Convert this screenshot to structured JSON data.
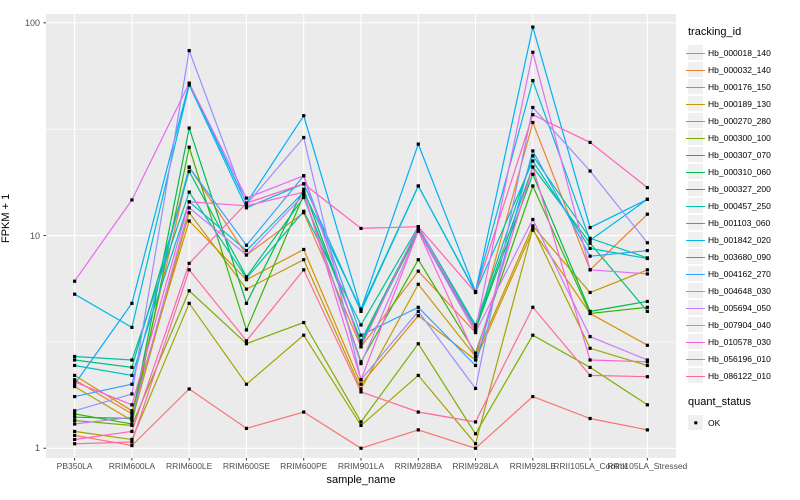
{
  "chart_data": {
    "type": "line",
    "title": "",
    "xlabel": "sample_name",
    "ylabel": "FPKM + 1",
    "y_scale": "log10",
    "y_ticks": [
      1,
      10,
      100
    ],
    "ylim": [
      0.9,
      110
    ],
    "grid": "on",
    "legend_position": "right",
    "categories": [
      "PB350LA",
      "RRIM600LA",
      "RRIM600LE",
      "RRIM600SE",
      "RRIM600PE",
      "RRIM901LA",
      "RRIM928BA",
      "RRIM928LA",
      "RRIM928LE",
      "RRII105LA_Control",
      "RRII105LA_Stressed"
    ],
    "series": [
      {
        "name": "Hb_000018_140",
        "color": "#F8766D",
        "values": [
          1.15,
          1.03,
          1.9,
          1.24,
          1.48,
          1.0,
          1.22,
          1.0,
          1.75,
          1.38,
          1.22
        ]
      },
      {
        "name": "Hb_000032_140",
        "color": "#EA8331",
        "values": [
          2.1,
          1.45,
          21,
          8.1,
          12.8,
          3.0,
          6.8,
          3.5,
          34,
          6.9,
          12.6
        ]
      },
      {
        "name": "Hb_000176_150",
        "color": "#D89000",
        "values": [
          2.2,
          1.5,
          11.7,
          6.2,
          8.6,
          2.0,
          4.2,
          2.6,
          10.6,
          4.3,
          3.05
        ]
      },
      {
        "name": "Hb_000189_130",
        "color": "#C09B00",
        "values": [
          1.95,
          1.35,
          12.8,
          5.6,
          7.7,
          1.9,
          5.9,
          2.7,
          11.1,
          5.4,
          6.9
        ]
      },
      {
        "name": "Hb_000270_280",
        "color": "#A3A500",
        "values": [
          1.2,
          1.1,
          4.8,
          2.0,
          3.4,
          1.28,
          2.2,
          1.05,
          10.8,
          2.95,
          2.45
        ]
      },
      {
        "name": "Hb_000300_100",
        "color": "#7CAE00",
        "values": [
          1.35,
          1.28,
          5.5,
          3.1,
          3.9,
          1.33,
          3.1,
          1.17,
          3.4,
          2.4,
          1.6
        ]
      },
      {
        "name": "Hb_000307_070",
        "color": "#39B600",
        "values": [
          1.45,
          1.3,
          26,
          3.6,
          15.5,
          2.55,
          7.7,
          2.8,
          17.1,
          4.3,
          4.6
        ]
      },
      {
        "name": "Hb_000310_060",
        "color": "#00BB4E",
        "values": [
          1.4,
          1.38,
          32,
          4.8,
          16.5,
          3.1,
          10.5,
          3.6,
          19.4,
          4.4,
          4.9
        ]
      },
      {
        "name": "Hb_000327_200",
        "color": "#00BF7D",
        "values": [
          2.6,
          2.4,
          20,
          6.4,
          15.1,
          3.2,
          10.8,
          3.7,
          21,
          9.2,
          4.4
        ]
      },
      {
        "name": "Hb_000457_250",
        "color": "#00C1A3",
        "values": [
          2.7,
          2.6,
          16,
          6.3,
          13.0,
          3.8,
          11.0,
          3.8,
          23.7,
          9.7,
          7.85
        ]
      },
      {
        "name": "Hb_001103_060",
        "color": "#00BFC4",
        "values": [
          2.45,
          2.2,
          14.4,
          8.5,
          16.0,
          4.5,
          17.1,
          5.4,
          22.4,
          8.7,
          7.8
        ]
      },
      {
        "name": "Hb_001842_020",
        "color": "#00BAE0",
        "values": [
          5.3,
          3.7,
          51,
          13.5,
          17.5,
          4.4,
          17.1,
          5.45,
          53.5,
          9.5,
          14.8
        ]
      },
      {
        "name": "Hb_003680_090",
        "color": "#00B0F6",
        "values": [
          2.0,
          4.8,
          52,
          14.2,
          36.6,
          4.5,
          26.9,
          5.45,
          95.5,
          10.9,
          14.8
        ]
      },
      {
        "name": "Hb_004162_270",
        "color": "#35A2FF",
        "values": [
          1.75,
          2.0,
          20.9,
          9.0,
          19.1,
          3.4,
          4.6,
          2.45,
          25,
          8.0,
          8.5
        ]
      },
      {
        "name": "Hb_004648_030",
        "color": "#9590FF",
        "values": [
          1.5,
          1.8,
          74,
          14.0,
          28.9,
          2.1,
          4.4,
          1.91,
          40,
          20.1,
          9.25
        ]
      },
      {
        "name": "Hb_005694_050",
        "color": "#C77CFF",
        "values": [
          1.3,
          1.4,
          13.5,
          8.1,
          15.5,
          2.5,
          10.5,
          3.5,
          11.9,
          3.35,
          2.6
        ]
      },
      {
        "name": "Hb_007904_040",
        "color": "#E76BF3",
        "values": [
          6.1,
          14.7,
          52,
          15.0,
          19.1,
          3.0,
          11.0,
          3.6,
          72.7,
          6.9,
          6.6
        ]
      },
      {
        "name": "Hb_010578_030",
        "color": "#FA62DB",
        "values": [
          2.05,
          1.6,
          14.4,
          13.8,
          16.0,
          2.1,
          10.5,
          2.7,
          21,
          2.6,
          2.55
        ]
      },
      {
        "name": "Hb_056196_010",
        "color": "#FF62BC",
        "values": [
          1.1,
          1.2,
          7.4,
          14.2,
          17.5,
          10.8,
          11.0,
          5.4,
          37,
          27.4,
          16.8
        ]
      },
      {
        "name": "Hb_086122_010",
        "color": "#FF6A98",
        "values": [
          1.05,
          1.07,
          6.9,
          3.2,
          6.9,
          1.84,
          1.48,
          1.33,
          4.6,
          2.2,
          2.17
        ]
      }
    ],
    "point_color": "#000000",
    "panel_bg": "#EBEBEB",
    "grid_color": "#FFFFFF",
    "legend": {
      "color_title": "tracking_id",
      "shape_title": "quant_status",
      "shape_items": [
        {
          "label": "OK"
        }
      ]
    }
  }
}
